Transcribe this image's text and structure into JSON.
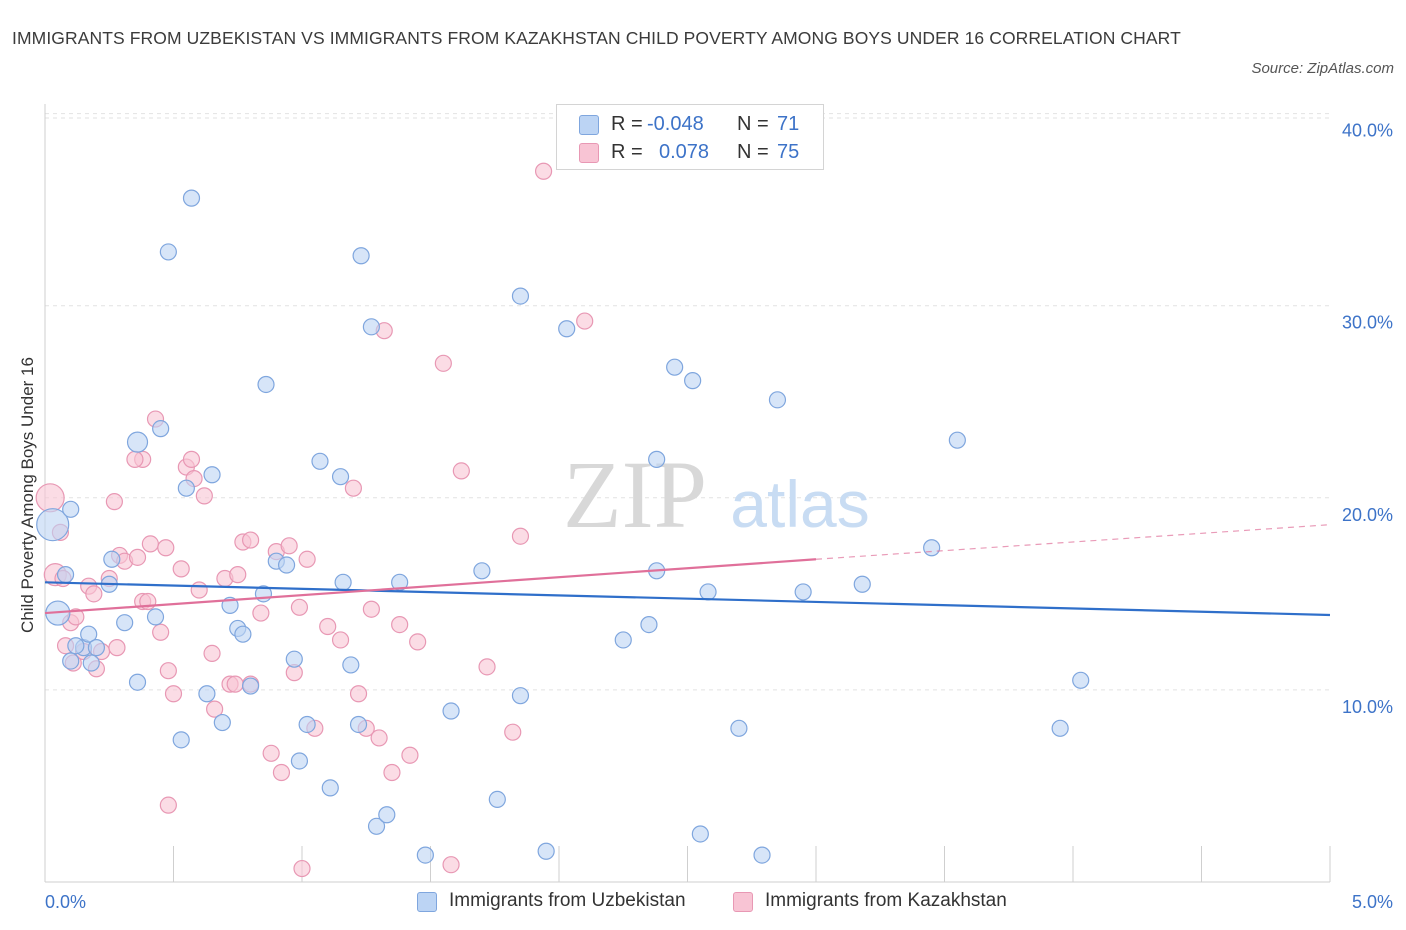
{
  "title": "IMMIGRANTS FROM UZBEKISTAN VS IMMIGRANTS FROM KAZAKHSTAN CHILD POVERTY AMONG BOYS UNDER 16 CORRELATION CHART",
  "source": "Source: ZipAtlas.com",
  "watermark": {
    "zip": "ZIP",
    "atlas": "atlas"
  },
  "legend": {
    "r_label": "R =",
    "n_label": "N =",
    "uzbekistan": {
      "r": "-0.048",
      "n": "71"
    },
    "kazakhstan": {
      "r": "0.078",
      "n": "75"
    }
  },
  "colors": {
    "uzbekistan_fill": "#bcd4f4",
    "uzbekistan_stroke": "#7fa6de",
    "uzbekistan_line": "#2f6fca",
    "kazakhstan_fill": "#f8c4d4",
    "kazakhstan_stroke": "#e898b4",
    "kazakhstan_line": "#e0709a",
    "tick_text": "#3d73c8",
    "grid": "#e2e2e2"
  },
  "chart_data": {
    "type": "scatter",
    "title": "IMMIGRANTS FROM UZBEKISTAN VS IMMIGRANTS FROM KAZAKHSTAN CHILD POVERTY AMONG BOYS UNDER 16 CORRELATION CHART",
    "xlabel": "",
    "ylabel": "Child Poverty Among Boys Under 16",
    "xlim": [
      0,
      5
    ],
    "ylim": [
      0,
      40.5
    ],
    "x_tick_labels": [
      "0.0%",
      "5.0%"
    ],
    "y_ticks": [
      10,
      20,
      30,
      40
    ],
    "y_tick_labels": [
      "10.0%",
      "20.0%",
      "30.0%",
      "40.0%"
    ],
    "legend_position": "top-center",
    "series": [
      {
        "name": "Immigrants from Uzbekistan",
        "trend": {
          "x0": 0.0,
          "y0": 15.6,
          "x1": 5.0,
          "y1": 13.9
        },
        "points": [
          [
            0.03,
            18.6
          ],
          [
            0.05,
            14.0
          ],
          [
            0.08,
            16.0
          ],
          [
            0.1,
            19.4
          ],
          [
            0.1,
            11.5
          ],
          [
            0.15,
            12.2
          ],
          [
            0.17,
            12.9
          ],
          [
            0.18,
            11.4
          ],
          [
            0.2,
            12.2
          ],
          [
            0.25,
            15.5
          ],
          [
            0.26,
            16.8
          ],
          [
            0.31,
            13.5
          ],
          [
            0.36,
            10.4
          ],
          [
            0.36,
            22.9
          ],
          [
            0.43,
            13.8
          ],
          [
            0.45,
            23.6
          ],
          [
            0.48,
            32.8
          ],
          [
            0.53,
            7.4
          ],
          [
            0.55,
            20.5
          ],
          [
            0.57,
            35.6
          ],
          [
            0.63,
            9.8
          ],
          [
            0.65,
            21.2
          ],
          [
            0.69,
            8.3
          ],
          [
            0.72,
            14.4
          ],
          [
            0.75,
            13.2
          ],
          [
            0.77,
            12.9
          ],
          [
            0.8,
            10.2
          ],
          [
            0.85,
            15.0
          ],
          [
            0.86,
            25.9
          ],
          [
            0.9,
            16.7
          ],
          [
            0.94,
            16.5
          ],
          [
            0.97,
            11.6
          ],
          [
            0.99,
            6.3
          ],
          [
            1.02,
            8.2
          ],
          [
            1.07,
            21.9
          ],
          [
            1.11,
            4.9
          ],
          [
            1.15,
            21.1
          ],
          [
            1.16,
            15.6
          ],
          [
            1.19,
            11.3
          ],
          [
            1.22,
            8.2
          ],
          [
            1.23,
            32.6
          ],
          [
            1.27,
            28.9
          ],
          [
            1.29,
            2.9
          ],
          [
            1.33,
            3.5
          ],
          [
            1.38,
            15.6
          ],
          [
            1.48,
            1.4
          ],
          [
            1.58,
            8.9
          ],
          [
            1.7,
            16.2
          ],
          [
            1.76,
            4.3
          ],
          [
            1.85,
            9.7
          ],
          [
            1.85,
            30.5
          ],
          [
            1.95,
            1.6
          ],
          [
            2.03,
            28.8
          ],
          [
            2.25,
            12.6
          ],
          [
            2.35,
            13.4
          ],
          [
            2.38,
            22.0
          ],
          [
            2.38,
            16.2
          ],
          [
            2.45,
            26.8
          ],
          [
            2.52,
            26.1
          ],
          [
            2.55,
            2.5
          ],
          [
            2.58,
            15.1
          ],
          [
            2.7,
            8.0
          ],
          [
            2.79,
            1.4
          ],
          [
            2.85,
            25.1
          ],
          [
            2.95,
            15.1
          ],
          [
            3.18,
            15.5
          ],
          [
            3.45,
            17.4
          ],
          [
            3.55,
            23.0
          ],
          [
            3.95,
            8.0
          ],
          [
            4.03,
            10.5
          ],
          [
            0.12,
            12.3
          ]
        ]
      },
      {
        "name": "Immigrants from Kazakhstan",
        "trend": {
          "x0": 0.0,
          "y0": 14.0,
          "x1": 3.0,
          "y1": 16.8
        },
        "trend_dashed": {
          "x0": 3.0,
          "y0": 16.8,
          "x1": 5.0,
          "y1": 18.6
        },
        "points": [
          [
            0.02,
            20.0
          ],
          [
            0.04,
            16.0
          ],
          [
            0.06,
            18.2
          ],
          [
            0.07,
            15.8
          ],
          [
            0.08,
            12.3
          ],
          [
            0.1,
            13.5
          ],
          [
            0.11,
            11.4
          ],
          [
            0.12,
            13.8
          ],
          [
            0.15,
            12.0
          ],
          [
            0.17,
            15.4
          ],
          [
            0.19,
            15.0
          ],
          [
            0.2,
            11.1
          ],
          [
            0.22,
            12.0
          ],
          [
            0.25,
            15.8
          ],
          [
            0.27,
            19.8
          ],
          [
            0.29,
            17.0
          ],
          [
            0.31,
            16.7
          ],
          [
            0.36,
            16.9
          ],
          [
            0.38,
            22.0
          ],
          [
            0.38,
            14.6
          ],
          [
            0.4,
            14.6
          ],
          [
            0.41,
            17.6
          ],
          [
            0.43,
            24.1
          ],
          [
            0.45,
            13.0
          ],
          [
            0.47,
            17.4
          ],
          [
            0.48,
            11.0
          ],
          [
            0.5,
            9.8
          ],
          [
            0.55,
            21.6
          ],
          [
            0.57,
            22.0
          ],
          [
            0.58,
            21.0
          ],
          [
            0.6,
            15.2
          ],
          [
            0.62,
            20.1
          ],
          [
            0.66,
            9.0
          ],
          [
            0.7,
            15.8
          ],
          [
            0.72,
            10.3
          ],
          [
            0.75,
            16.0
          ],
          [
            0.77,
            17.7
          ],
          [
            0.8,
            10.3
          ],
          [
            0.8,
            17.8
          ],
          [
            0.84,
            14.0
          ],
          [
            0.88,
            6.7
          ],
          [
            0.9,
            17.2
          ],
          [
            0.92,
            5.7
          ],
          [
            0.95,
            17.5
          ],
          [
            0.97,
            10.9
          ],
          [
            0.99,
            14.3
          ],
          [
            1.0,
            0.7
          ],
          [
            1.02,
            16.8
          ],
          [
            1.05,
            8.0
          ],
          [
            1.1,
            13.3
          ],
          [
            1.15,
            12.6
          ],
          [
            1.2,
            20.5
          ],
          [
            1.22,
            9.8
          ],
          [
            1.25,
            8.0
          ],
          [
            1.27,
            14.2
          ],
          [
            1.3,
            7.5
          ],
          [
            1.32,
            28.7
          ],
          [
            1.35,
            5.7
          ],
          [
            1.38,
            13.4
          ],
          [
            1.42,
            6.6
          ],
          [
            1.45,
            12.5
          ],
          [
            1.55,
            27.0
          ],
          [
            1.58,
            0.9
          ],
          [
            1.62,
            21.4
          ],
          [
            1.72,
            11.2
          ],
          [
            1.82,
            7.8
          ],
          [
            1.85,
            18.0
          ],
          [
            1.94,
            37.0
          ],
          [
            2.1,
            29.2
          ],
          [
            0.48,
            4.0
          ],
          [
            0.65,
            11.9
          ],
          [
            0.35,
            22.0
          ],
          [
            0.53,
            16.3
          ],
          [
            0.28,
            12.2
          ],
          [
            0.74,
            10.3
          ]
        ]
      }
    ]
  }
}
